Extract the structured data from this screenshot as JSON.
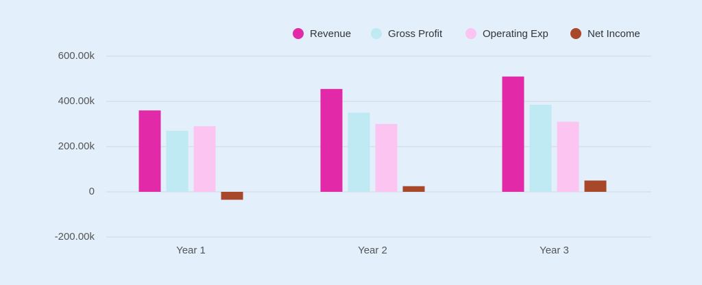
{
  "chart_data": {
    "type": "bar",
    "categories": [
      "Year 1",
      "Year 2",
      "Year 3"
    ],
    "series": [
      {
        "name": "Revenue",
        "color": "#e229a8",
        "values": [
          360000,
          455000,
          510000
        ]
      },
      {
        "name": "Gross Profit",
        "color": "#bfeaf3",
        "values": [
          270000,
          350000,
          385000
        ]
      },
      {
        "name": "Operating Exp",
        "color": "#fcc4f0",
        "values": [
          290000,
          300000,
          310000
        ]
      },
      {
        "name": "Net Income",
        "color": "#a8482a",
        "values": [
          -35000,
          25000,
          50000
        ]
      }
    ],
    "ylim": [
      -200000,
      600000
    ],
    "yticks": [
      {
        "value": -200000,
        "label": "-200.00k"
      },
      0,
      {
        "value": 200000,
        "label": "200.00k"
      },
      {
        "value": 400000,
        "label": "400.00k"
      },
      {
        "value": 600000,
        "label": "600.00k"
      }
    ],
    "grid": true,
    "legend": "top-right"
  }
}
